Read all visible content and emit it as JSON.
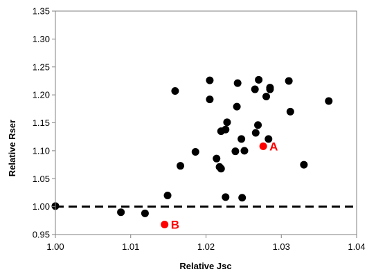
{
  "chart_data": {
    "type": "scatter",
    "xlabel": "Relative Jsc",
    "ylabel": "Relative Rser",
    "xlim": [
      1.0,
      1.04
    ],
    "ylim": [
      0.95,
      1.35
    ],
    "x_ticks": [
      "1.00",
      "1.01",
      "1.02",
      "1.03",
      "1.04"
    ],
    "y_ticks": [
      "0.95",
      "1.00",
      "1.05",
      "1.10",
      "1.15",
      "1.20",
      "1.25",
      "1.30",
      "1.35"
    ],
    "grid": false,
    "legend": "none",
    "reference_line": {
      "y": 1.0,
      "style": "dashed",
      "color": "#000000"
    },
    "series": [
      {
        "color": "#000000",
        "points": [
          {
            "x": 1.0,
            "y": 1.001
          },
          {
            "x": 1.0087,
            "y": 0.99
          },
          {
            "x": 1.0119,
            "y": 0.988
          },
          {
            "x": 1.0149,
            "y": 1.02
          },
          {
            "x": 1.0159,
            "y": 1.207
          },
          {
            "x": 1.0166,
            "y": 1.073
          },
          {
            "x": 1.0186,
            "y": 1.098
          },
          {
            "x": 1.0205,
            "y": 1.226
          },
          {
            "x": 1.0205,
            "y": 1.192
          },
          {
            "x": 1.0214,
            "y": 1.086
          },
          {
            "x": 1.0218,
            "y": 1.071
          },
          {
            "x": 1.022,
            "y": 1.068
          },
          {
            "x": 1.022,
            "y": 1.135
          },
          {
            "x": 1.0226,
            "y": 1.138
          },
          {
            "x": 1.0226,
            "y": 1.017
          },
          {
            "x": 1.0228,
            "y": 1.151
          },
          {
            "x": 1.0239,
            "y": 1.099
          },
          {
            "x": 1.0241,
            "y": 1.179
          },
          {
            "x": 1.0242,
            "y": 1.221
          },
          {
            "x": 1.0247,
            "y": 1.121
          },
          {
            "x": 1.0248,
            "y": 1.016
          },
          {
            "x": 1.0251,
            "y": 1.1
          },
          {
            "x": 1.0265,
            "y": 1.21
          },
          {
            "x": 1.0266,
            "y": 1.132
          },
          {
            "x": 1.0269,
            "y": 1.146
          },
          {
            "x": 1.027,
            "y": 1.227
          },
          {
            "x": 1.028,
            "y": 1.197
          },
          {
            "x": 1.0283,
            "y": 1.121
          },
          {
            "x": 1.0285,
            "y": 1.213
          },
          {
            "x": 1.0285,
            "y": 1.21
          },
          {
            "x": 1.031,
            "y": 1.225
          },
          {
            "x": 1.0312,
            "y": 1.17
          },
          {
            "x": 1.033,
            "y": 1.075
          },
          {
            "x": 1.0363,
            "y": 1.189
          }
        ]
      },
      {
        "color": "#ff0000",
        "points": [
          {
            "x": 1.0276,
            "y": 1.108,
            "label": "A"
          },
          {
            "x": 1.0145,
            "y": 0.968,
            "label": "B"
          }
        ]
      }
    ]
  }
}
